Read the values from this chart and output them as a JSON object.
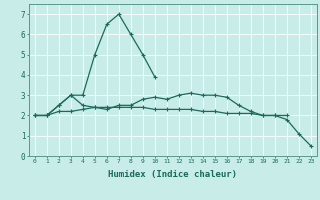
{
  "xlabel": "Humidex (Indice chaleur)",
  "bg_color": "#c8ece8",
  "grid_color": "#ffffff",
  "line_color": "#1a6b5a",
  "series1": [
    2.0,
    2.0,
    2.5,
    3.0,
    3.0,
    5.0,
    6.5,
    7.0,
    6.0,
    5.0,
    3.9,
    null,
    null,
    null,
    null,
    null,
    null,
    null,
    null,
    null,
    null,
    null,
    null,
    null
  ],
  "series2": [
    2.0,
    2.0,
    2.5,
    3.0,
    2.5,
    2.4,
    2.3,
    2.5,
    2.5,
    2.8,
    2.9,
    2.8,
    3.0,
    3.1,
    3.0,
    3.0,
    2.9,
    2.5,
    2.2,
    2.0,
    2.0,
    1.8,
    1.1,
    0.5
  ],
  "series3": [
    2.0,
    2.0,
    2.2,
    2.2,
    2.3,
    2.4,
    2.4,
    2.4,
    2.4,
    2.4,
    2.3,
    2.3,
    2.3,
    2.3,
    2.2,
    2.2,
    2.1,
    2.1,
    2.1,
    2.0,
    2.0,
    2.0,
    null,
    null
  ],
  "xlim": [
    -0.5,
    23.5
  ],
  "ylim": [
    0,
    7.5
  ],
  "yticks": [
    0,
    1,
    2,
    3,
    4,
    5,
    6,
    7
  ],
  "xticks": [
    0,
    1,
    2,
    3,
    4,
    5,
    6,
    7,
    8,
    9,
    10,
    11,
    12,
    13,
    14,
    15,
    16,
    17,
    18,
    19,
    20,
    21,
    22,
    23
  ]
}
